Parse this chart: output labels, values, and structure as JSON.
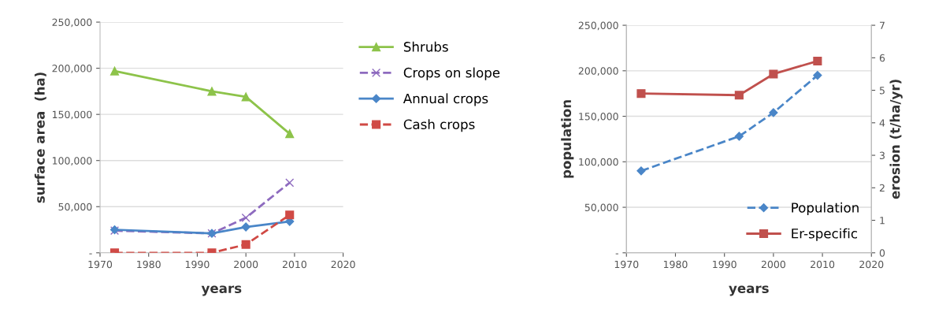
{
  "chart_data": [
    {
      "type": "line",
      "xlabel": "years",
      "ylabel": "surface area  (ha)",
      "x": [
        1973,
        1993,
        2000,
        2009
      ],
      "xlim": [
        1970,
        2020
      ],
      "xticks": [
        1970,
        1980,
        1990,
        2000,
        2010,
        2020
      ],
      "ylim": [
        0,
        250000
      ],
      "yticks": [
        {
          "value": 0,
          "label": "-"
        },
        {
          "value": 50000,
          "label": "50,000"
        },
        {
          "value": 100000,
          "label": "100,000"
        },
        {
          "value": 150000,
          "label": "150,000"
        },
        {
          "value": 200000,
          "label": "200,000"
        },
        {
          "value": 250000,
          "label": "250,000"
        }
      ],
      "grid": "y",
      "legend": "right",
      "series": [
        {
          "name": "Shrubs",
          "color": "#8dc34a",
          "marker": "triangle",
          "line_style": "solid",
          "values": [
            197000,
            175000,
            169000,
            129000
          ]
        },
        {
          "name": "Crops on slope",
          "color": "#8e6bbf",
          "marker": "cross",
          "line_style": "dashed",
          "values": [
            24000,
            21000,
            38000,
            76000
          ]
        },
        {
          "name": "Annual crops",
          "color": "#4a86c8",
          "marker": "diamond",
          "line_style": "solid",
          "values": [
            25000,
            21000,
            28000,
            34000
          ]
        },
        {
          "name": "Cash crops",
          "color": "#d04a45",
          "marker": "square",
          "line_style": "dashed",
          "values": [
            0,
            0,
            9000,
            41000
          ]
        }
      ]
    },
    {
      "type": "line",
      "xlabel": "years",
      "ylabel": "population",
      "y2label": "erosion (t/ha/yr)",
      "x": [
        1973,
        1993,
        2000,
        2009
      ],
      "xlim": [
        1970,
        2020
      ],
      "xticks": [
        1970,
        1980,
        1990,
        2000,
        2010,
        2020
      ],
      "ylim": [
        0,
        250000
      ],
      "yticks": [
        {
          "value": 0,
          "label": "-"
        },
        {
          "value": 50000,
          "label": "50,000"
        },
        {
          "value": 100000,
          "label": "100,000"
        },
        {
          "value": 150000,
          "label": "150,000"
        },
        {
          "value": 200000,
          "label": "200,000"
        },
        {
          "value": 250000,
          "label": "250,000"
        }
      ],
      "y2lim": [
        0,
        7
      ],
      "y2ticks": [
        0,
        1,
        2,
        3,
        4,
        5,
        6,
        7
      ],
      "grid": "y",
      "legend": "bottom right",
      "series": [
        {
          "name": "Population",
          "color": "#4a86c8",
          "marker": "diamond",
          "line_style": "dashed",
          "values": [
            90000,
            128000,
            154000,
            195000
          ]
        },
        {
          "name": "Er-specific",
          "color": "#c0504d",
          "marker": "square",
          "line_style": "solid",
          "axis": "y2",
          "values": [
            4.9,
            4.85,
            5.5,
            5.9
          ]
        }
      ]
    }
  ]
}
